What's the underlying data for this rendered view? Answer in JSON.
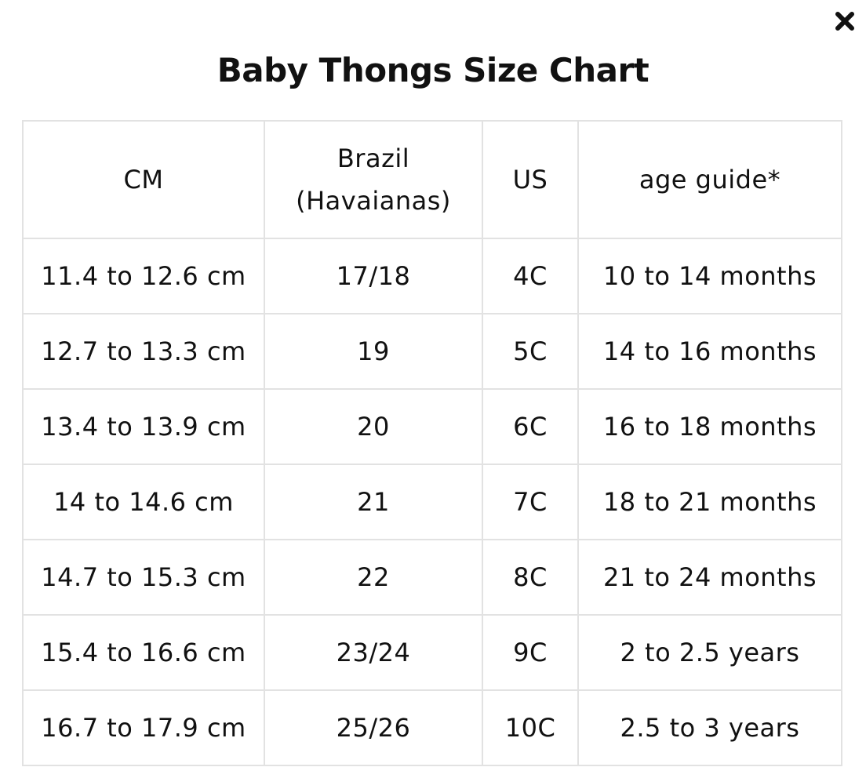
{
  "modal": {
    "title": "Baby Thongs Size Chart",
    "close_icon": "close-icon"
  },
  "table": {
    "headers": {
      "cm": "CM",
      "brazil_line1": "Brazil",
      "brazil_line2": "(Havaianas)",
      "us": "US",
      "age": "age guide*"
    },
    "rows": [
      {
        "cm": "11.4 to 12.6 cm",
        "brazil": "17/18",
        "us": "4C",
        "age": "10 to 14 months"
      },
      {
        "cm": "12.7 to 13.3 cm",
        "brazil": "19",
        "us": "5C",
        "age": "14 to 16 months"
      },
      {
        "cm": "13.4 to 13.9 cm",
        "brazil": "20",
        "us": "6C",
        "age": "16 to 18 months"
      },
      {
        "cm": "14 to 14.6 cm",
        "brazil": "21",
        "us": "7C",
        "age": "18 to 21 months"
      },
      {
        "cm": "14.7 to 15.3 cm",
        "brazil": "22",
        "us": "8C",
        "age": "21 to 24 months"
      },
      {
        "cm": "15.4 to 16.6 cm",
        "brazil": "23/24",
        "us": "9C",
        "age": "2 to 2.5 years"
      },
      {
        "cm": "16.7 to 17.9 cm",
        "brazil": "25/26",
        "us": "10C",
        "age": "2.5 to 3 years"
      }
    ]
  }
}
